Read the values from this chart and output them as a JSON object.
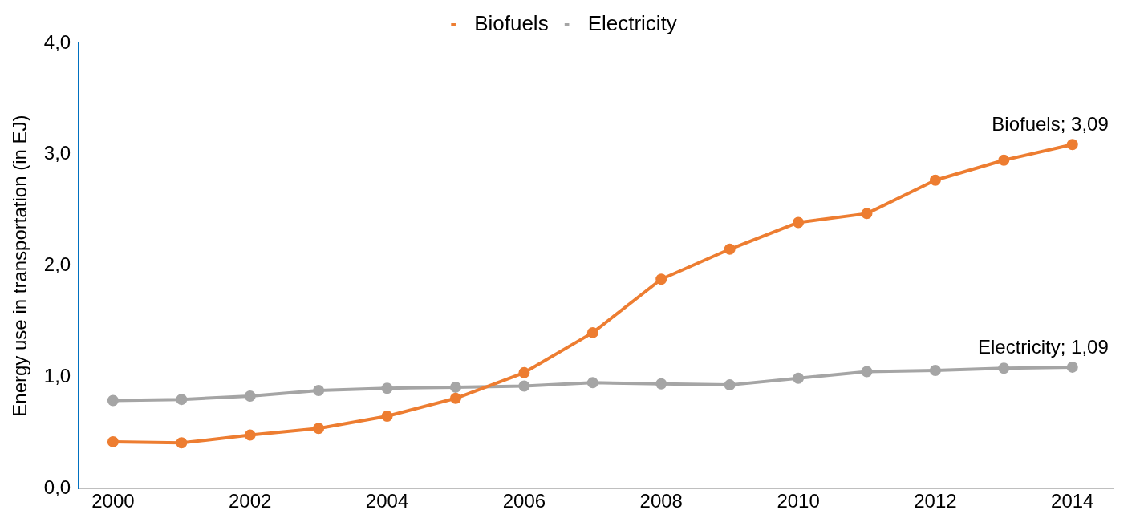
{
  "chart_data": {
    "type": "line",
    "ylabel": "Energy use in transportation (in EJ)",
    "x": [
      2000,
      2001,
      2002,
      2003,
      2004,
      2005,
      2006,
      2007,
      2008,
      2009,
      2010,
      2011,
      2012,
      2013,
      2014
    ],
    "series": [
      {
        "name": "Biofuels",
        "color": "#ed7d31",
        "values": [
          0.42,
          0.41,
          0.48,
          0.54,
          0.65,
          0.81,
          1.04,
          1.4,
          1.88,
          2.15,
          2.39,
          2.47,
          2.77,
          2.95,
          3.09
        ]
      },
      {
        "name": "Electricity",
        "color": "#a5a5a5",
        "values": [
          0.79,
          0.8,
          0.83,
          0.88,
          0.9,
          0.91,
          0.92,
          0.95,
          0.94,
          0.93,
          0.99,
          1.05,
          1.06,
          1.08,
          1.09
        ]
      }
    ],
    "xlim": [
      1999.5,
      2014.6
    ],
    "xticks": [
      2000,
      2002,
      2004,
      2006,
      2008,
      2010,
      2012,
      2014
    ],
    "ylim": [
      0,
      4
    ],
    "yticks": [
      {
        "value": 0,
        "label": "0,0"
      },
      {
        "value": 1,
        "label": "1,0"
      },
      {
        "value": 2,
        "label": "2,0"
      },
      {
        "value": 3,
        "label": "3,0"
      },
      {
        "value": 4,
        "label": "4,0"
      }
    ],
    "annotations": [
      {
        "text": "Biofuels; 3,09",
        "x": 2014,
        "y": 3.09
      },
      {
        "text": "Electricity; 1,09",
        "x": 2014,
        "y": 1.09
      }
    ],
    "legend": "top",
    "grid": false,
    "marker": "circle",
    "line_style": "solid"
  }
}
